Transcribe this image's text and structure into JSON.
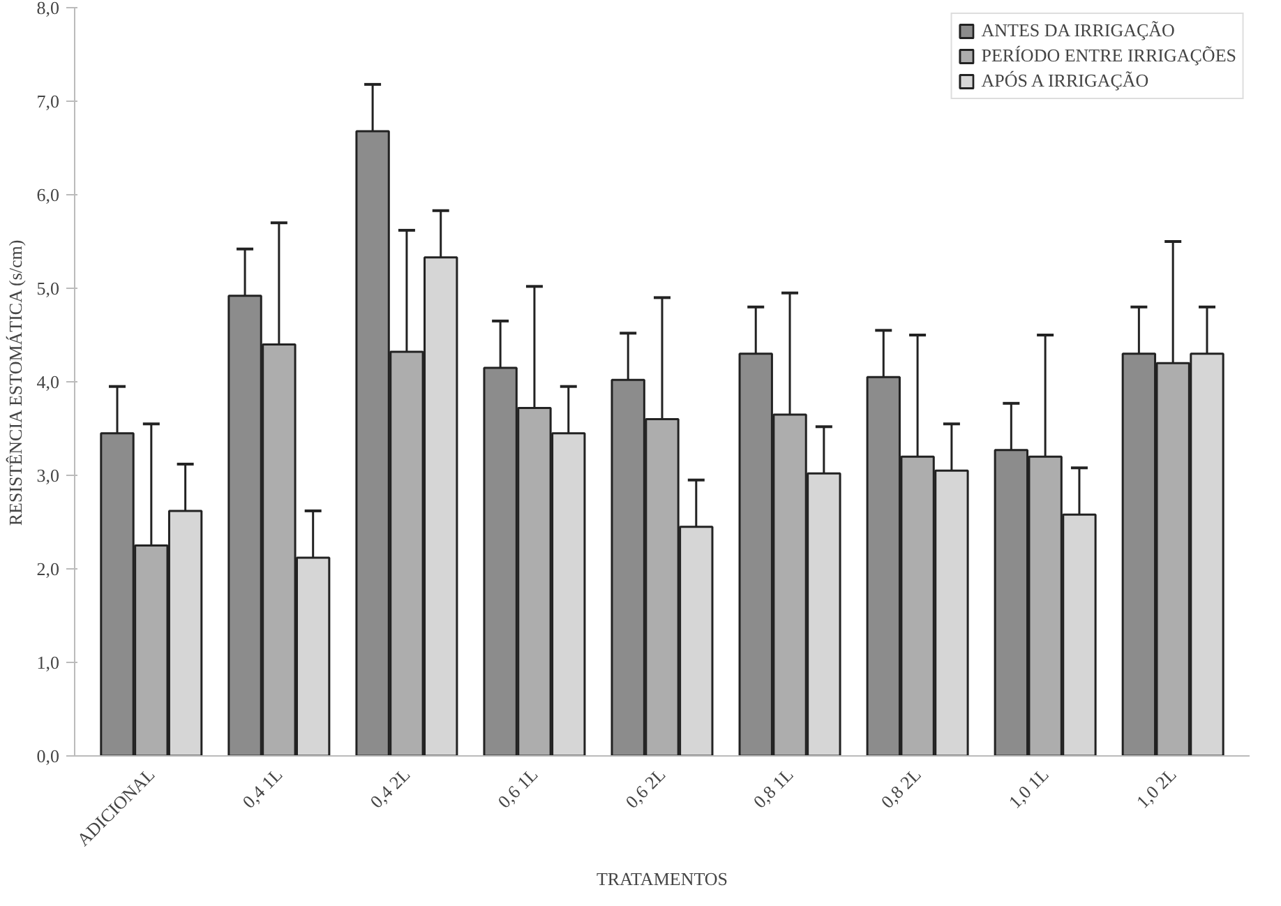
{
  "chart_data": {
    "type": "bar",
    "xlabel": "TRATAMENTOS",
    "ylabel": "RESISTÊNCIA ESTOMÁTICA (s/cm)",
    "categories": [
      "ADICIONAL",
      "0,4 1L",
      "0,4 2L",
      "0,6 1L",
      "0,6 2L",
      "0,8 1L",
      "0,8 2L",
      "1,0 1L",
      "1,0 2L"
    ],
    "series": [
      {
        "name": "ANTES DA IRRIGAÇÃO",
        "color": "#8c8c8c",
        "values": [
          3.45,
          4.92,
          6.68,
          4.15,
          4.02,
          4.3,
          4.05,
          3.27,
          4.3
        ],
        "errors": [
          0.5,
          0.5,
          0.5,
          0.5,
          0.5,
          0.5,
          0.5,
          0.5,
          0.5
        ]
      },
      {
        "name": "PERÍODO ENTRE IRRIGAÇÕES",
        "color": "#adadad",
        "values": [
          2.25,
          4.4,
          4.32,
          3.72,
          3.6,
          3.65,
          3.2,
          3.2,
          4.2
        ],
        "errors": [
          1.3,
          1.3,
          1.3,
          1.3,
          1.3,
          1.3,
          1.3,
          1.3,
          1.3
        ]
      },
      {
        "name": "APÓS A IRRIGAÇÃO",
        "color": "#d6d6d6",
        "values": [
          2.62,
          2.12,
          5.33,
          3.45,
          2.45,
          3.02,
          3.05,
          2.58,
          4.3
        ],
        "errors": [
          0.5,
          0.5,
          0.5,
          0.5,
          0.5,
          0.5,
          0.5,
          0.5,
          0.5
        ]
      }
    ],
    "ylim": [
      0,
      8
    ],
    "yticks": [
      {
        "value": 0,
        "label": "0,0"
      },
      {
        "value": 1,
        "label": "1,0"
      },
      {
        "value": 2,
        "label": "2,0"
      },
      {
        "value": 3,
        "label": "3,0"
      },
      {
        "value": 4,
        "label": "4,0"
      },
      {
        "value": 5,
        "label": "5,0"
      },
      {
        "value": 6,
        "label": "6,0"
      },
      {
        "value": 7,
        "label": "7,0"
      },
      {
        "value": 8,
        "label": "8,0"
      }
    ],
    "grid": false,
    "legend": "top right"
  }
}
